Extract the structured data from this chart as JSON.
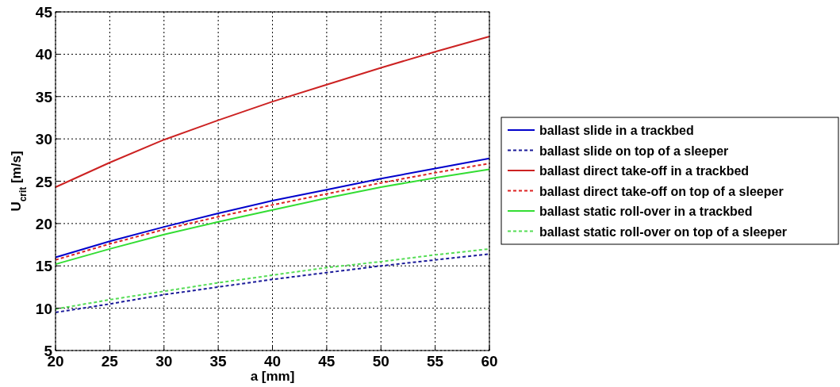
{
  "chart_data": {
    "type": "line",
    "xlabel": "a  [mm]",
    "ylabel": "U$_{crit}$  [m/s]",
    "x": [
      20,
      25,
      30,
      35,
      40,
      45,
      50,
      55,
      60
    ],
    "xlim": [
      20,
      60
    ],
    "xticks": [
      20,
      25,
      30,
      35,
      40,
      45,
      50,
      55,
      60
    ],
    "ylim": [
      5,
      45
    ],
    "yticks": [
      5,
      10,
      15,
      20,
      25,
      30,
      35,
      40,
      45
    ],
    "grid": true,
    "legend": "right",
    "series": [
      {
        "name": "ballast slide in a trackbed",
        "color": "#0000cc",
        "line_style": "solid",
        "values": [
          16,
          17.9,
          19.6,
          21.2,
          22.7,
          24.0,
          25.3,
          26.5,
          27.7
        ]
      },
      {
        "name": "ballast slide on top of a sleeper",
        "color": "#1a1a99",
        "line_style": "dashed",
        "values": [
          9.5,
          10.5,
          11.6,
          12.5,
          13.4,
          14.2,
          15.0,
          15.7,
          16.4
        ]
      },
      {
        "name": "ballast direct take-off in a trackbed",
        "color": "#cc2222",
        "line_style": "solid",
        "values": [
          24.3,
          27.2,
          29.9,
          32.2,
          34.4,
          36.4,
          38.4,
          40.3,
          42.1
        ]
      },
      {
        "name": "ballast direct take-off on top of a sleeper",
        "color": "#dd2222",
        "line_style": "dashed",
        "values": [
          15.7,
          17.6,
          19.3,
          20.8,
          22.2,
          23.5,
          24.8,
          26.0,
          27.1
        ]
      },
      {
        "name": "ballast static roll-over in a trackbed",
        "color": "#33dd33",
        "line_style": "solid",
        "values": [
          15.2,
          17.0,
          18.7,
          20.2,
          21.6,
          23.0,
          24.3,
          25.4,
          26.4
        ]
      },
      {
        "name": "ballast static roll-over on top of a sleeper",
        "color": "#55dd55",
        "line_style": "dashed",
        "values": [
          9.9,
          11.0,
          12.0,
          13.0,
          13.9,
          14.8,
          15.5,
          16.3,
          17.0
        ]
      }
    ]
  }
}
